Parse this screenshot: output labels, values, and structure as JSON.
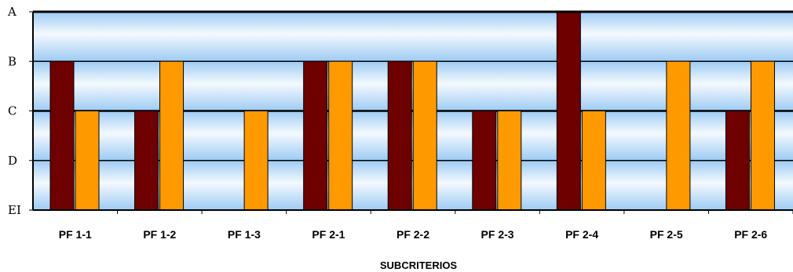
{
  "chart_data": {
    "type": "bar",
    "title": "",
    "xlabel": "SUBCRITERIOS",
    "ylabel": "",
    "y_levels": [
      "EI",
      "D",
      "C",
      "B",
      "A"
    ],
    "ylim": [
      0,
      4
    ],
    "grid": true,
    "categories": [
      "PF 1-1",
      "PF 1-2",
      "PF 1-3",
      "PF 2-1",
      "PF 2-2",
      "PF 2-3",
      "PF 2-4",
      "PF 2-5",
      "PF 2-6"
    ],
    "series": [
      {
        "color": "#6e0000",
        "values": [
          3,
          2,
          0,
          3,
          3,
          2,
          4,
          0,
          2
        ]
      },
      {
        "color": "#ff9900",
        "values": [
          2,
          3,
          2,
          3,
          3,
          2,
          2,
          3,
          3
        ]
      }
    ],
    "colors": {
      "plot_top": "#9dcbf4",
      "plot_mid": "#f4f9fe",
      "axis": "#000000",
      "bar_border": "#000000"
    }
  }
}
